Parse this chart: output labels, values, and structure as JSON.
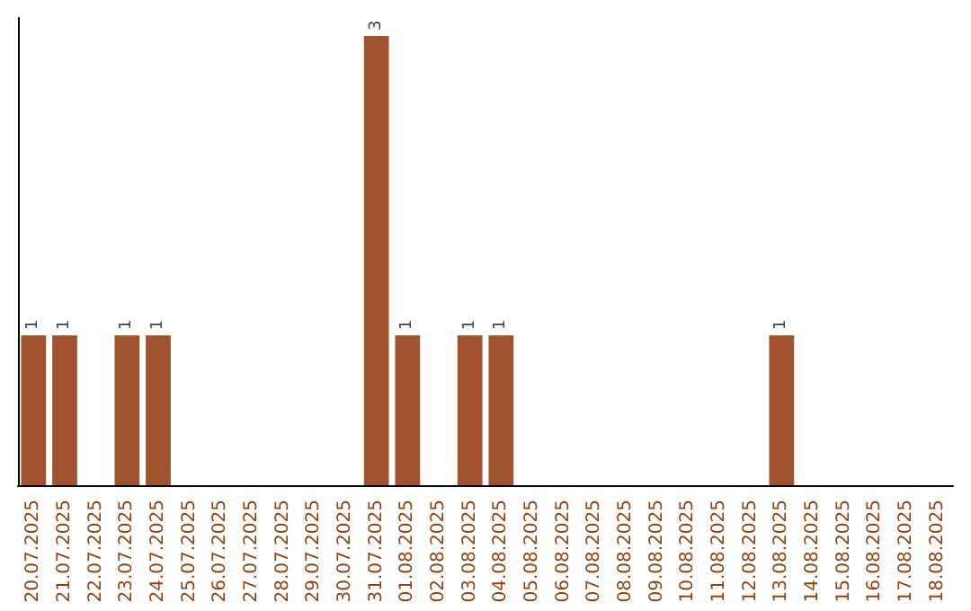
{
  "chart_data": {
    "type": "bar",
    "categories": [
      "20.07.2025",
      "21.07.2025",
      "22.07.2025",
      "23.07.2025",
      "24.07.2025",
      "25.07.2025",
      "26.07.2025",
      "27.07.2025",
      "28.07.2025",
      "29.07.2025",
      "30.07.2025",
      "31.07.2025",
      "01.08.2025",
      "02.08.2025",
      "03.08.2025",
      "04.08.2025",
      "05.08.2025",
      "06.08.2025",
      "07.08.2025",
      "08.08.2025",
      "09.08.2025",
      "10.08.2025",
      "11.08.2025",
      "12.08.2025",
      "13.08.2025",
      "14.08.2025",
      "15.08.2025",
      "16.08.2025",
      "17.08.2025",
      "18.08.2025"
    ],
    "values": [
      1,
      1,
      0,
      1,
      1,
      0,
      0,
      0,
      0,
      0,
      0,
      3,
      1,
      0,
      1,
      1,
      0,
      0,
      0,
      0,
      0,
      0,
      0,
      0,
      1,
      0,
      0,
      0,
      0,
      0
    ],
    "value_labels": [
      "1",
      "1",
      null,
      "1",
      "1",
      null,
      null,
      null,
      null,
      null,
      null,
      "3",
      "1",
      null,
      "1",
      "1",
      null,
      null,
      null,
      null,
      null,
      null,
      null,
      null,
      "1",
      null,
      null,
      null,
      null,
      null
    ],
    "color": "#a0522d"
  }
}
